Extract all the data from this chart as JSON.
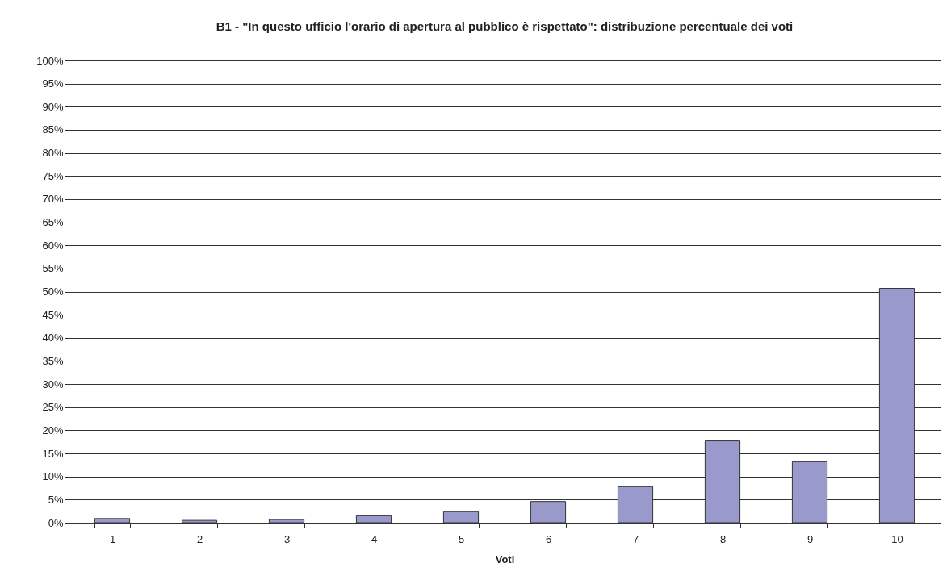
{
  "chart_data": {
    "type": "bar",
    "title": "B1 - \"In questo ufficio l'orario di apertura al pubblico è rispettato\": distribuzione percentuale dei voti",
    "xlabel": "Voti",
    "categories": [
      "1",
      "2",
      "3",
      "4",
      "5",
      "6",
      "7",
      "8",
      "9",
      "10"
    ],
    "series": [
      {
        "color": "#9999cc",
        "values": [
          0.9,
          0.5,
          0.7,
          1.5,
          2.4,
          4.6,
          7.8,
          17.7,
          13.2,
          50.7
        ]
      }
    ],
    "ylim": [
      0,
      100
    ],
    "yticks": [
      {
        "value": 0,
        "label": "0%"
      },
      {
        "value": 5,
        "label": "5%"
      },
      {
        "value": 10,
        "label": "10%"
      },
      {
        "value": 15,
        "label": "15%"
      },
      {
        "value": 20,
        "label": "20%"
      },
      {
        "value": 25,
        "label": "25%"
      },
      {
        "value": 30,
        "label": "30%"
      },
      {
        "value": 35,
        "label": "35%"
      },
      {
        "value": 40,
        "label": "40%"
      },
      {
        "value": 45,
        "label": "45%"
      },
      {
        "value": 50,
        "label": "50%"
      },
      {
        "value": 55,
        "label": "55%"
      },
      {
        "value": 60,
        "label": "60%"
      },
      {
        "value": 65,
        "label": "65%"
      },
      {
        "value": 70,
        "label": "70%"
      },
      {
        "value": 75,
        "label": "75%"
      },
      {
        "value": 80,
        "label": "80%"
      },
      {
        "value": 85,
        "label": "85%"
      },
      {
        "value": 90,
        "label": "90%"
      },
      {
        "value": 95,
        "label": "95%"
      },
      {
        "value": 100,
        "label": "100%"
      }
    ],
    "grid": "y"
  }
}
